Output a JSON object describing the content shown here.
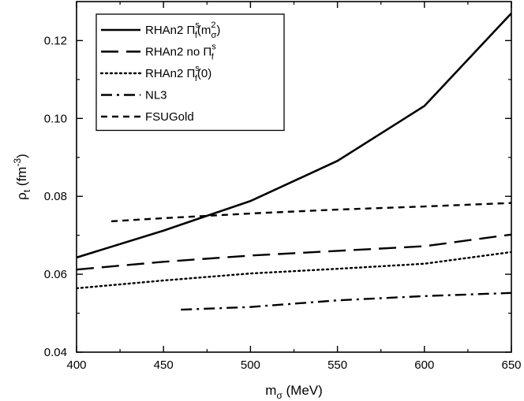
{
  "chart_data": {
    "type": "line",
    "xlabel_main": "m",
    "xlabel_sub": "σ",
    "xlabel_unit": " (MeV)",
    "ylabel_main": "ρ",
    "ylabel_sub": "t",
    "ylabel_unit_open": " (fm",
    "ylabel_unit_sup": "-3",
    "ylabel_unit_close": ")",
    "xlim": [
      400,
      650
    ],
    "ylim": [
      0.04,
      0.13
    ],
    "x_ticks": [
      "400",
      "450",
      "500",
      "550",
      "600",
      "650"
    ],
    "y_ticks": [
      "0.04",
      "0.06",
      "0.08",
      "0.10",
      "0.12"
    ],
    "x_tick_values": [
      400,
      450,
      500,
      550,
      600,
      650
    ],
    "y_tick_values": [
      0.04,
      0.06,
      0.08,
      0.1,
      0.12
    ],
    "grid": false,
    "legend_placement": "top-left",
    "series": [
      {
        "name": "RHAn2 Π_f^s(m_σ^2)",
        "legend": {
          "base": "RHAn2  Π",
          "sub": "f",
          "sup": "s",
          "tail_open": "(m",
          "tail_sub": "σ",
          "tail_sup": "2",
          "tail_close": ")"
        },
        "style": "solid",
        "x": [
          400,
          450,
          500,
          550,
          600,
          650
        ],
        "y": [
          0.0643,
          0.0712,
          0.0788,
          0.0891,
          0.1032,
          0.127
        ]
      },
      {
        "name": "RHAn2 no Π_f^s",
        "legend": {
          "base": "RHAn2  no  Π",
          "sub": "f",
          "sup": "s",
          "tail_open": "",
          "tail_sub": "",
          "tail_sup": "",
          "tail_close": ""
        },
        "style": "long-dash",
        "x": [
          400,
          450,
          500,
          550,
          600,
          650
        ],
        "y": [
          0.0612,
          0.0632,
          0.0648,
          0.066,
          0.0672,
          0.0702
        ]
      },
      {
        "name": "RHAn2 Π_f^s(0)",
        "legend": {
          "base": "RHAn2  Π",
          "sub": "f",
          "sup": "s",
          "tail_open": "(0)",
          "tail_sub": "",
          "tail_sup": "",
          "tail_close": ""
        },
        "style": "dotted",
        "x": [
          400,
          450,
          500,
          550,
          600,
          650
        ],
        "y": [
          0.0564,
          0.0584,
          0.0602,
          0.0614,
          0.0627,
          0.0657
        ]
      },
      {
        "name": "NL3",
        "legend": {
          "base": "NL3",
          "sub": "",
          "sup": "",
          "tail_open": "",
          "tail_sub": "",
          "tail_sup": "",
          "tail_close": ""
        },
        "style": "dash-dot",
        "x": [
          460,
          500,
          550,
          600,
          650
        ],
        "y": [
          0.0509,
          0.0516,
          0.0533,
          0.0544,
          0.0552
        ]
      },
      {
        "name": "FSUGold",
        "legend": {
          "base": "FSUGold",
          "sub": "",
          "sup": "",
          "tail_open": "",
          "tail_sub": "",
          "tail_sup": "",
          "tail_close": ""
        },
        "style": "short-dash",
        "x": [
          420,
          450,
          500,
          550,
          600,
          650
        ],
        "y": [
          0.0736,
          0.0744,
          0.0756,
          0.0766,
          0.0774,
          0.0783
        ]
      }
    ],
    "style_dasharray": {
      "solid": "",
      "long-dash": "22,10",
      "dotted": "2,4",
      "dash-dot": "14,6,3,6",
      "short-dash": "8,6"
    }
  }
}
